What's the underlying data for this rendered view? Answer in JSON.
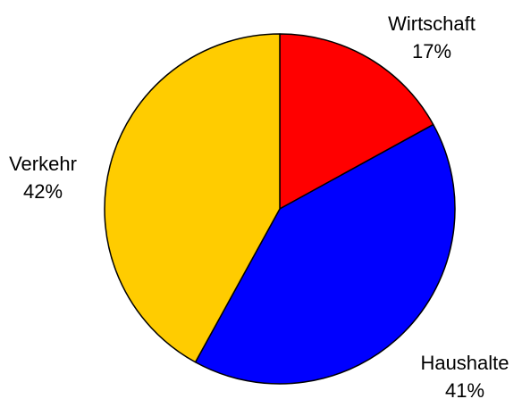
{
  "chart_data": {
    "type": "pie",
    "categories": [
      "Wirtschaft",
      "Haushalte",
      "Verkehr"
    ],
    "values": [
      17,
      41,
      42
    ],
    "value_labels": [
      "17%",
      "41%",
      "42%"
    ],
    "colors": [
      "#ff0000",
      "#0000ff",
      "#ffcc00"
    ]
  }
}
